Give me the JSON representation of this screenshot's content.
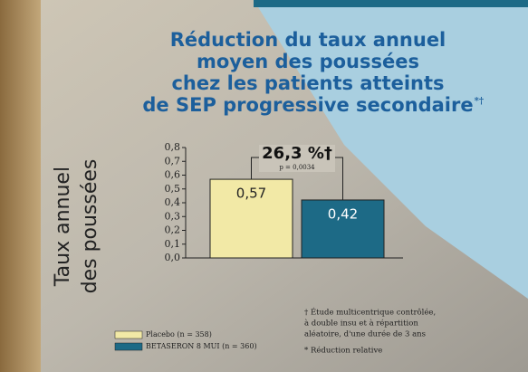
{
  "chart_data": {
    "type": "bar",
    "title": [
      "Réduction du taux annuel",
      "moyen des poussées",
      "chez les patients atteints",
      "de SEP progressive secondaire"
    ],
    "title_note": "*†",
    "y_label": [
      "Taux annuel",
      "des poussées"
    ],
    "categories": [
      null
    ],
    "series": [
      {
        "name": "Placebo (n = 358)",
        "color": "#f2e9a6",
        "values": [
          0.57
        ],
        "value_labels": [
          "0,57"
        ]
      },
      {
        "name": "BETASERON 8 MUI (n = 360)",
        "color": "#1d6a86",
        "values": [
          0.42
        ],
        "value_labels": [
          "0,42"
        ]
      }
    ],
    "ylim": [
      0,
      0.8
    ],
    "yticks": [
      {
        "value": 0,
        "label": "0,0"
      },
      {
        "value": 0.1,
        "label": "0,1"
      },
      {
        "value": 0.2,
        "label": "0,2"
      },
      {
        "value": 0.3,
        "label": "0,3"
      },
      {
        "value": 0.4,
        "label": "0,4"
      },
      {
        "value": 0.5,
        "label": "0,5"
      },
      {
        "value": 0.6,
        "label": "0,6"
      },
      {
        "value": 0.7,
        "label": "0,7"
      },
      {
        "value": 0.8,
        "label": "0,8"
      }
    ],
    "annotation": "26,3 %†",
    "p_value": "p = 0,0034",
    "footnotes": [
      "† Étude multicentrique contrôlée,",
      "à double insu et à répartition",
      "aléatoire, d'une durée de 3 ans",
      "* Réduction relative"
    ]
  }
}
